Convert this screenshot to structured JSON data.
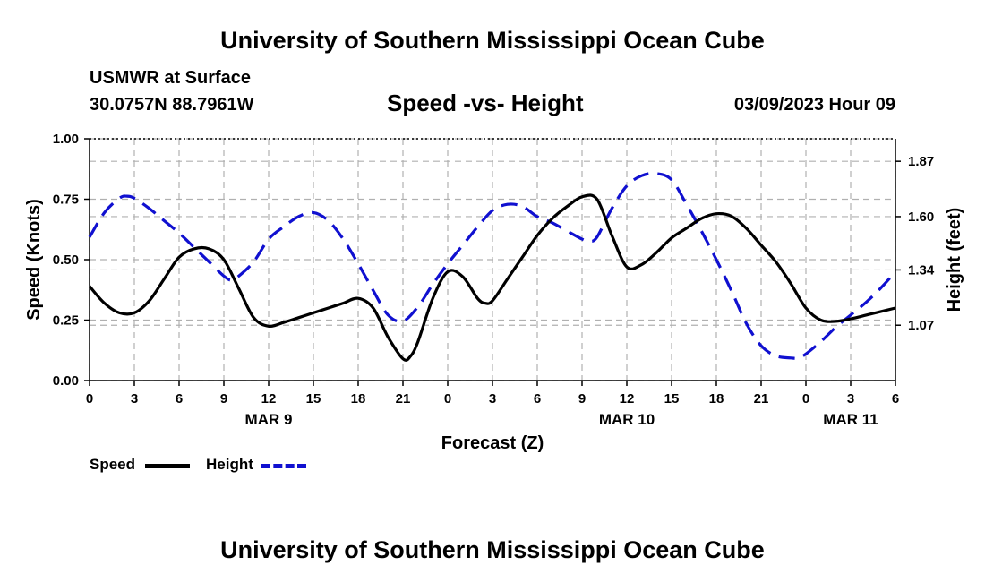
{
  "header": {
    "title": "University of Southern Mississippi Ocean Cube",
    "station": "USMWR at Surface",
    "coords": "30.0757N  88.7961W",
    "chart_title": "Speed -vs- Height",
    "date": "03/09/2023 Hour 09"
  },
  "footer": {
    "title": "University of Southern Mississippi Ocean Cube"
  },
  "colors": {
    "speed": "#000000",
    "height": "#1010d0",
    "grid": "#b0b0b0"
  },
  "chart_data": {
    "type": "line",
    "title": "Speed -vs- Height",
    "xlabel": "Forecast (Z)",
    "ylabel": "Speed (Knots)",
    "y2label": "Height (feet)",
    "x_range": [
      0,
      54
    ],
    "x_tick_hours": [
      0,
      3,
      6,
      9,
      12,
      15,
      18,
      21,
      24,
      27,
      30,
      33,
      36,
      39,
      42,
      45,
      48,
      51,
      54
    ],
    "x_tick_labels": [
      "0",
      "3",
      "6",
      "9",
      "12",
      "15",
      "18",
      "21",
      "0",
      "3",
      "6",
      "9",
      "12",
      "15",
      "18",
      "21",
      "0",
      "3",
      "6"
    ],
    "date_labels": [
      {
        "hour": 12,
        "label": "MAR 9"
      },
      {
        "hour": 36,
        "label": "MAR 10"
      },
      {
        "hour": 51,
        "label": "MAR 11"
      }
    ],
    "ylim": [
      0,
      1.0
    ],
    "y_ticks": [
      0.0,
      0.25,
      0.5,
      0.75,
      1.0
    ],
    "y_tick_labels": [
      "0.00",
      "0.25",
      "0.50",
      "0.75",
      "1.00"
    ],
    "y2lim": [
      0.8,
      1.98
    ],
    "y2_ticks": [
      1.07,
      1.34,
      1.6,
      1.87
    ],
    "y2_tick_labels": [
      "1.07",
      "1.34",
      "1.60",
      "1.87"
    ],
    "legend": [
      {
        "name": "Speed"
      },
      {
        "name": "Height"
      }
    ],
    "series": [
      {
        "name": "Speed",
        "axis": "left",
        "style": "solid",
        "x": [
          0,
          1,
          2,
          3,
          4,
          5,
          6,
          7,
          8,
          9,
          10,
          11,
          12,
          13,
          14,
          15,
          16,
          17,
          18,
          19,
          20,
          21,
          21.5,
          22,
          23,
          24,
          25,
          26,
          26.5,
          27,
          28,
          29,
          30,
          31,
          32,
          33,
          34,
          35,
          36,
          37,
          38,
          39,
          40,
          41,
          42,
          43,
          44,
          45,
          46,
          47,
          48,
          49,
          50,
          51,
          52,
          53,
          54
        ],
        "values": [
          0.39,
          0.32,
          0.28,
          0.28,
          0.33,
          0.42,
          0.51,
          0.545,
          0.545,
          0.5,
          0.38,
          0.26,
          0.225,
          0.24,
          0.26,
          0.28,
          0.3,
          0.32,
          0.34,
          0.3,
          0.18,
          0.09,
          0.1,
          0.16,
          0.34,
          0.45,
          0.43,
          0.34,
          0.32,
          0.33,
          0.42,
          0.51,
          0.6,
          0.67,
          0.72,
          0.76,
          0.75,
          0.6,
          0.47,
          0.48,
          0.53,
          0.59,
          0.63,
          0.67,
          0.69,
          0.68,
          0.63,
          0.56,
          0.49,
          0.4,
          0.3,
          0.25,
          0.245,
          0.255,
          0.27,
          0.285,
          0.3
        ]
      },
      {
        "name": "Height",
        "axis": "right",
        "style": "dashed",
        "x": [
          0,
          1,
          2,
          2.5,
          3,
          4,
          5,
          6,
          7,
          8,
          9,
          9.5,
          10,
          11,
          12,
          13,
          14,
          15,
          16,
          17,
          18,
          19,
          20,
          21,
          22,
          23,
          24,
          25,
          26,
          27,
          28,
          29,
          30,
          31,
          32,
          33,
          33.5,
          34,
          35,
          36,
          37,
          38,
          39,
          40,
          41,
          42,
          43,
          44,
          45,
          46,
          47,
          47.5,
          48,
          49,
          50,
          51,
          52,
          53,
          54
        ],
        "values": [
          1.5,
          1.62,
          1.69,
          1.7,
          1.69,
          1.64,
          1.58,
          1.52,
          1.45,
          1.38,
          1.31,
          1.29,
          1.31,
          1.38,
          1.49,
          1.55,
          1.6,
          1.62,
          1.58,
          1.49,
          1.37,
          1.24,
          1.12,
          1.09,
          1.16,
          1.27,
          1.37,
          1.46,
          1.55,
          1.63,
          1.66,
          1.65,
          1.6,
          1.57,
          1.53,
          1.49,
          1.48,
          1.5,
          1.64,
          1.75,
          1.8,
          1.81,
          1.78,
          1.66,
          1.53,
          1.39,
          1.24,
          1.08,
          0.97,
          0.92,
          0.91,
          0.91,
          0.93,
          0.99,
          1.06,
          1.12,
          1.18,
          1.25,
          1.33
        ]
      }
    ]
  }
}
